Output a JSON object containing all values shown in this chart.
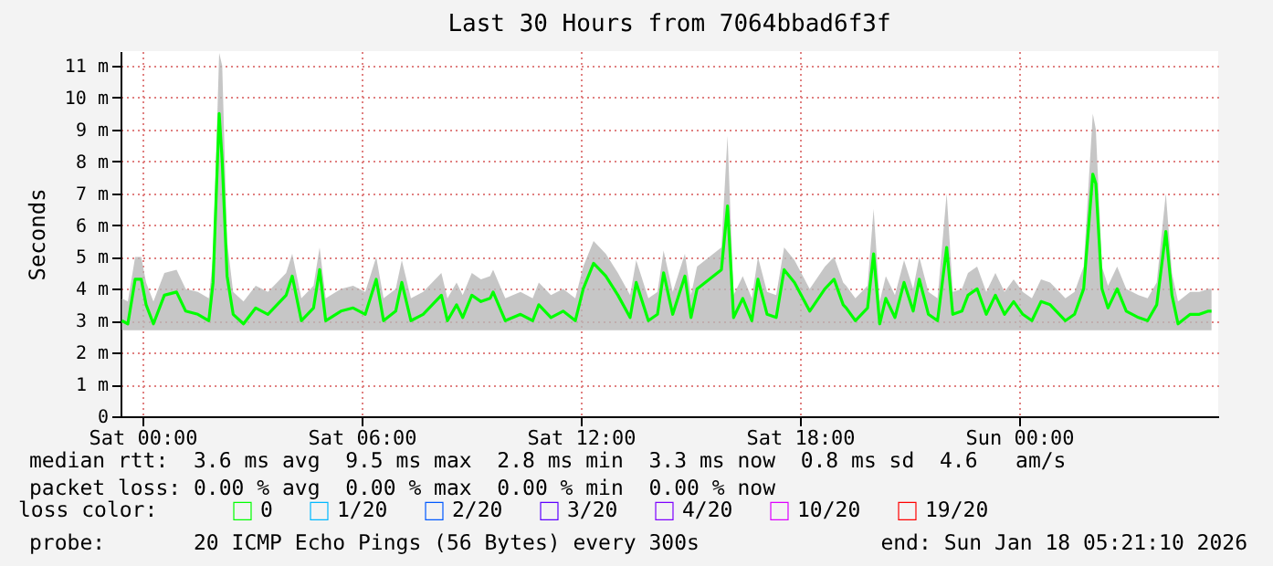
{
  "chart_data": {
    "type": "line",
    "title": "Last 30 Hours from 7064bbad6f3f",
    "ylabel": "Seconds",
    "legend_title": "loss color:",
    "legend": "bottom left",
    "grid": true,
    "xlim": [
      "2026-01-16T23:24",
      "2026-01-18T05:27"
    ],
    "xticks": [
      {
        "value": "2026-01-17T00:00",
        "label": "Sat 00:00"
      },
      {
        "value": "2026-01-17T06:00",
        "label": "Sat 06:00"
      },
      {
        "value": "2026-01-17T12:00",
        "label": "Sat 12:00"
      },
      {
        "value": "2026-01-17T18:00",
        "label": "Sat 18:00"
      },
      {
        "value": "2026-01-18T00:00",
        "label": "Sun 00:00"
      }
    ],
    "ylim": [
      0,
      11.46
    ],
    "yticks": [
      {
        "value": 0,
        "label": "0"
      },
      {
        "value": 1,
        "label": "1 m"
      },
      {
        "value": 2,
        "label": "2 m"
      },
      {
        "value": 3,
        "label": "3 m"
      },
      {
        "value": 4,
        "label": "4 m"
      },
      {
        "value": 5,
        "label": "5 m"
      },
      {
        "value": 6,
        "label": "6 m"
      },
      {
        "value": 7,
        "label": "7 m"
      },
      {
        "value": 8,
        "label": "8 m"
      },
      {
        "value": 9,
        "label": "9 m"
      },
      {
        "value": 10,
        "label": "10 m"
      },
      {
        "value": 11,
        "label": "11 m"
      }
    ],
    "x": [
      "2026-01-16T23:26",
      "2026-01-16T23:36",
      "2026-01-16T23:48",
      "2026-01-16T23:58",
      "2026-01-17T00:06",
      "2026-01-17T00:18",
      "2026-01-17T00:36",
      "2026-01-17T00:56",
      "2026-01-17T01:11",
      "2026-01-17T01:31",
      "2026-01-17T01:49",
      "2026-01-17T01:56",
      "2026-01-17T02:06",
      "2026-01-17T02:11",
      "2026-01-17T02:19",
      "2026-01-17T02:29",
      "2026-01-17T02:46",
      "2026-01-17T03:06",
      "2026-01-17T03:26",
      "2026-01-17T03:41",
      "2026-01-17T03:56",
      "2026-01-17T04:06",
      "2026-01-17T04:21",
      "2026-01-17T04:41",
      "2026-01-17T04:51",
      "2026-01-17T05:01",
      "2026-01-17T05:26",
      "2026-01-17T05:46",
      "2026-01-17T06:06",
      "2026-01-17T06:24",
      "2026-01-17T06:36",
      "2026-01-17T06:56",
      "2026-01-17T07:06",
      "2026-01-17T07:21",
      "2026-01-17T07:41",
      "2026-01-17T08:11",
      "2026-01-17T08:21",
      "2026-01-17T08:36",
      "2026-01-17T08:46",
      "2026-01-17T09:01",
      "2026-01-17T09:16",
      "2026-01-17T09:31",
      "2026-01-17T09:36",
      "2026-01-17T09:56",
      "2026-01-17T10:21",
      "2026-01-17T10:41",
      "2026-01-17T10:51",
      "2026-01-17T11:11",
      "2026-01-17T11:31",
      "2026-01-17T11:51",
      "2026-01-17T12:04",
      "2026-01-17T12:21",
      "2026-01-17T12:41",
      "2026-01-17T13:01",
      "2026-01-17T13:21",
      "2026-01-17T13:31",
      "2026-01-17T13:51",
      "2026-01-17T14:06",
      "2026-01-17T14:16",
      "2026-01-17T14:31",
      "2026-01-17T14:51",
      "2026-01-17T15:01",
      "2026-01-17T15:11",
      "2026-01-17T15:31",
      "2026-01-17T15:51",
      "2026-01-17T16:01",
      "2026-01-17T16:11",
      "2026-01-17T16:26",
      "2026-01-17T16:41",
      "2026-01-17T16:51",
      "2026-01-17T17:06",
      "2026-01-17T17:21",
      "2026-01-17T17:34",
      "2026-01-17T17:51",
      "2026-01-17T18:16",
      "2026-01-17T18:41",
      "2026-01-17T18:56",
      "2026-01-17T19:11",
      "2026-01-17T19:16",
      "2026-01-17T19:31",
      "2026-01-17T19:51",
      "2026-01-17T20:01",
      "2026-01-17T20:11",
      "2026-01-17T20:21",
      "2026-01-17T20:36",
      "2026-01-17T20:51",
      "2026-01-17T21:06",
      "2026-01-17T21:16",
      "2026-01-17T21:31",
      "2026-01-17T21:46",
      "2026-01-17T22:01",
      "2026-01-17T22:11",
      "2026-01-17T22:26",
      "2026-01-17T22:36",
      "2026-01-17T22:51",
      "2026-01-17T23:06",
      "2026-01-17T23:21",
      "2026-01-17T23:36",
      "2026-01-17T23:51",
      "2026-01-18T00:06",
      "2026-01-18T00:21",
      "2026-01-18T00:36",
      "2026-01-18T00:51",
      "2026-01-18T01:06",
      "2026-01-18T01:16",
      "2026-01-18T01:31",
      "2026-01-18T01:46",
      "2026-01-18T02:01",
      "2026-01-18T02:06",
      "2026-01-18T02:16",
      "2026-01-18T02:26",
      "2026-01-18T02:41",
      "2026-01-18T02:56",
      "2026-01-18T03:16",
      "2026-01-18T03:31",
      "2026-01-18T03:46",
      "2026-01-18T04:01",
      "2026-01-18T04:11",
      "2026-01-18T04:21",
      "2026-01-18T04:41",
      "2026-01-18T04:56",
      "2026-01-18T05:11",
      "2026-01-18T05:16"
    ],
    "series": [
      {
        "name": "0",
        "color": "#00ff00",
        "values": [
          3.0,
          2.9,
          4.3,
          4.3,
          3.5,
          2.9,
          3.8,
          3.9,
          3.3,
          3.2,
          3.0,
          4.2,
          9.5,
          8.0,
          4.4,
          3.2,
          2.9,
          3.4,
          3.2,
          3.5,
          3.8,
          4.4,
          3.0,
          3.4,
          4.6,
          3.0,
          3.3,
          3.4,
          3.2,
          4.3,
          3.0,
          3.3,
          4.2,
          3.0,
          3.2,
          3.8,
          3.0,
          3.5,
          3.1,
          3.8,
          3.6,
          3.7,
          3.9,
          3.0,
          3.2,
          3.0,
          3.5,
          3.1,
          3.3,
          3.0,
          4.0,
          4.8,
          4.4,
          3.8,
          3.1,
          4.2,
          3.0,
          3.2,
          4.5,
          3.2,
          4.4,
          3.1,
          4.0,
          4.3,
          4.6,
          6.6,
          3.1,
          3.7,
          3.0,
          4.3,
          3.2,
          3.1,
          4.6,
          4.2,
          3.3,
          4.0,
          4.3,
          3.5,
          3.4,
          3.0,
          3.4,
          5.1,
          2.9,
          3.7,
          3.1,
          4.2,
          3.3,
          4.3,
          3.2,
          3.0,
          5.3,
          3.2,
          3.3,
          3.8,
          4.0,
          3.2,
          3.8,
          3.2,
          3.6,
          3.2,
          3.0,
          3.6,
          3.5,
          3.2,
          3.0,
          3.2,
          4.0,
          7.6,
          7.3,
          4.0,
          3.4,
          4.0,
          3.3,
          3.1,
          3.0,
          3.5,
          5.8,
          3.8,
          2.9,
          3.2,
          3.2,
          3.3,
          3.3
        ],
        "lower": [
          2.7,
          2.7,
          2.7,
          2.7,
          2.7,
          2.7,
          2.7,
          2.7,
          2.7,
          2.7,
          2.7,
          2.7,
          2.7,
          2.7,
          2.7,
          2.7,
          2.7,
          2.7,
          2.7,
          2.7,
          2.7,
          2.7,
          2.7,
          2.7,
          2.7,
          2.7,
          2.7,
          2.7,
          2.7,
          2.7,
          2.7,
          2.7,
          2.7,
          2.7,
          2.7,
          2.7,
          2.7,
          2.7,
          2.7,
          2.7,
          2.7,
          2.7,
          2.7,
          2.7,
          2.7,
          2.7,
          2.7,
          2.7,
          2.7,
          2.7,
          2.7,
          2.7,
          2.7,
          2.7,
          2.7,
          2.7,
          2.7,
          2.7,
          2.7,
          2.7,
          2.7,
          2.7,
          2.7,
          2.7,
          2.7,
          2.7,
          2.7,
          2.7,
          2.7,
          2.7,
          2.7,
          2.7,
          2.7,
          2.7,
          2.7,
          2.7,
          2.7,
          2.7,
          2.7,
          2.7,
          2.7,
          2.7,
          2.7,
          2.7,
          2.7,
          2.7,
          2.7,
          2.7,
          2.7,
          2.7,
          2.7,
          2.7,
          2.7,
          2.7,
          2.7,
          2.7,
          2.7,
          2.7,
          2.7,
          2.7,
          2.7,
          2.7,
          2.7,
          2.7,
          2.7,
          2.7,
          2.7,
          2.7,
          2.7,
          2.7,
          2.7,
          2.7,
          2.7,
          2.7,
          2.7,
          2.7,
          2.7,
          2.7,
          2.7,
          2.7,
          2.7,
          2.7,
          2.7
        ],
        "upper": [
          3.7,
          3.6,
          5.0,
          5.0,
          4.2,
          3.6,
          4.5,
          4.6,
          4.0,
          3.9,
          3.7,
          5.0,
          11.4,
          11.0,
          5.5,
          3.9,
          3.6,
          4.1,
          3.9,
          4.2,
          4.5,
          5.1,
          3.7,
          4.1,
          5.3,
          3.7,
          4.0,
          4.1,
          3.9,
          5.0,
          3.7,
          4.0,
          4.9,
          3.7,
          3.9,
          4.5,
          3.7,
          4.2,
          3.8,
          4.5,
          4.3,
          4.4,
          4.6,
          3.7,
          3.9,
          3.7,
          4.2,
          3.8,
          4.0,
          3.7,
          4.7,
          5.5,
          5.1,
          4.5,
          3.8,
          4.9,
          3.7,
          3.9,
          5.2,
          3.9,
          5.1,
          3.8,
          4.7,
          5.0,
          5.3,
          8.8,
          3.8,
          4.4,
          3.7,
          5.0,
          3.9,
          3.8,
          5.3,
          4.9,
          4.0,
          4.7,
          5.0,
          4.2,
          4.1,
          3.7,
          4.1,
          6.5,
          3.6,
          4.4,
          3.8,
          4.9,
          4.0,
          5.0,
          3.9,
          3.7,
          7.0,
          3.9,
          4.0,
          4.5,
          4.7,
          3.9,
          4.5,
          3.9,
          4.3,
          3.9,
          3.7,
          4.3,
          4.2,
          3.9,
          3.7,
          3.9,
          4.7,
          9.5,
          9.0,
          4.7,
          4.1,
          4.7,
          4.0,
          3.8,
          3.7,
          4.2,
          7.0,
          4.5,
          3.6,
          3.9,
          3.9,
          4.0,
          4.0
        ]
      },
      {
        "name": "1/20",
        "color": "#00b8ff",
        "values": [
          null,
          null,
          null,
          null,
          null,
          null,
          null,
          null,
          null,
          null,
          null,
          null,
          null,
          null,
          null,
          null,
          null,
          null,
          null,
          null,
          null,
          null,
          null,
          null,
          null,
          null,
          null,
          null,
          null,
          null,
          null,
          null,
          null,
          null,
          null,
          null,
          null,
          null,
          null,
          null,
          null,
          null,
          null,
          null,
          null,
          null,
          null,
          null,
          null,
          null,
          null,
          null,
          null,
          null,
          null,
          null,
          null,
          null,
          null,
          null,
          null,
          null,
          null,
          null,
          null,
          null,
          null,
          null,
          null,
          null,
          null,
          null,
          null,
          null,
          null,
          null,
          null,
          null,
          null,
          null,
          null,
          null,
          null,
          null,
          null,
          null,
          null,
          null,
          null,
          null,
          null,
          null,
          null,
          null,
          null,
          null,
          null,
          null,
          null,
          null,
          null,
          null,
          null,
          null,
          null,
          null,
          null,
          null,
          null,
          null,
          null,
          null,
          null,
          null,
          null,
          null,
          null,
          null,
          null,
          null,
          null,
          null,
          null
        ]
      },
      {
        "name": "2/20",
        "color": "#0059ff",
        "values": [
          null,
          null,
          null,
          null,
          null,
          null,
          null,
          null,
          null,
          null,
          null,
          null,
          null,
          null,
          null,
          null,
          null,
          null,
          null,
          null,
          null,
          null,
          null,
          null,
          null,
          null,
          null,
          null,
          null,
          null,
          null,
          null,
          null,
          null,
          null,
          null,
          null,
          null,
          null,
          null,
          null,
          null,
          null,
          null,
          null,
          null,
          null,
          null,
          null,
          null,
          null,
          null,
          null,
          null,
          null,
          null,
          null,
          null,
          null,
          null,
          null,
          null,
          null,
          null,
          null,
          null,
          null,
          null,
          null,
          null,
          null,
          null,
          null,
          null,
          null,
          null,
          null,
          null,
          null,
          null,
          null,
          null,
          null,
          null,
          null,
          null,
          null,
          null,
          null,
          null,
          null,
          null,
          null,
          null,
          null,
          null,
          null,
          null,
          null,
          null,
          null,
          null,
          null,
          null,
          null,
          null,
          null,
          null,
          null,
          null,
          null,
          null,
          null,
          null,
          null,
          null,
          null,
          null,
          null,
          null,
          null,
          null,
          null
        ]
      },
      {
        "name": "3/20",
        "color": "#5e00ff",
        "values": [
          null,
          null,
          null,
          null,
          null,
          null,
          null,
          null,
          null,
          null,
          null,
          null,
          null,
          null,
          null,
          null,
          null,
          null,
          null,
          null,
          null,
          null,
          null,
          null,
          null,
          null,
          null,
          null,
          null,
          null,
          null,
          null,
          null,
          null,
          null,
          null,
          null,
          null,
          null,
          null,
          null,
          null,
          null,
          null,
          null,
          null,
          null,
          null,
          null,
          null,
          null,
          null,
          null,
          null,
          null,
          null,
          null,
          null,
          null,
          null,
          null,
          null,
          null,
          null,
          null,
          null,
          null,
          null,
          null,
          null,
          null,
          null,
          null,
          null,
          null,
          null,
          null,
          null,
          null,
          null,
          null,
          null,
          null,
          null,
          null,
          null,
          null,
          null,
          null,
          null,
          null,
          null,
          null,
          null,
          null,
          null,
          null,
          null,
          null,
          null,
          null,
          null,
          null,
          null,
          null,
          null,
          null,
          null,
          null,
          null,
          null,
          null,
          null,
          null,
          null,
          null,
          null,
          null,
          null,
          null,
          null,
          null,
          null
        ]
      },
      {
        "name": "4/20",
        "color": "#7e00ff",
        "values": [
          null,
          null,
          null,
          null,
          null,
          null,
          null,
          null,
          null,
          null,
          null,
          null,
          null,
          null,
          null,
          null,
          null,
          null,
          null,
          null,
          null,
          null,
          null,
          null,
          null,
          null,
          null,
          null,
          null,
          null,
          null,
          null,
          null,
          null,
          null,
          null,
          null,
          null,
          null,
          null,
          null,
          null,
          null,
          null,
          null,
          null,
          null,
          null,
          null,
          null,
          null,
          null,
          null,
          null,
          null,
          null,
          null,
          null,
          null,
          null,
          null,
          null,
          null,
          null,
          null,
          null,
          null,
          null,
          null,
          null,
          null,
          null,
          null,
          null,
          null,
          null,
          null,
          null,
          null,
          null,
          null,
          null,
          null,
          null,
          null,
          null,
          null,
          null,
          null,
          null,
          null,
          null,
          null,
          null,
          null,
          null,
          null,
          null,
          null,
          null,
          null,
          null,
          null,
          null,
          null,
          null,
          null,
          null,
          null,
          null,
          null,
          null,
          null,
          null,
          null,
          null,
          null,
          null,
          null,
          null,
          null,
          null,
          null
        ]
      },
      {
        "name": "10/20",
        "color": "#dd00ff",
        "values": [
          null,
          null,
          null,
          null,
          null,
          null,
          null,
          null,
          null,
          null,
          null,
          null,
          null,
          null,
          null,
          null,
          null,
          null,
          null,
          null,
          null,
          null,
          null,
          null,
          null,
          null,
          null,
          null,
          null,
          null,
          null,
          null,
          null,
          null,
          null,
          null,
          null,
          null,
          null,
          null,
          null,
          null,
          null,
          null,
          null,
          null,
          null,
          null,
          null,
          null,
          null,
          null,
          null,
          null,
          null,
          null,
          null,
          null,
          null,
          null,
          null,
          null,
          null,
          null,
          null,
          null,
          null,
          null,
          null,
          null,
          null,
          null,
          null,
          null,
          null,
          null,
          null,
          null,
          null,
          null,
          null,
          null,
          null,
          null,
          null,
          null,
          null,
          null,
          null,
          null,
          null,
          null,
          null,
          null,
          null,
          null,
          null,
          null,
          null,
          null,
          null,
          null,
          null,
          null,
          null,
          null,
          null,
          null,
          null,
          null,
          null,
          null,
          null,
          null,
          null,
          null,
          null,
          null,
          null,
          null,
          null,
          null,
          null
        ]
      },
      {
        "name": "19/20",
        "color": "#ff0000",
        "values": [
          null,
          null,
          null,
          null,
          null,
          null,
          null,
          null,
          null,
          null,
          null,
          null,
          null,
          null,
          null,
          null,
          null,
          null,
          null,
          null,
          null,
          null,
          null,
          null,
          null,
          null,
          null,
          null,
          null,
          null,
          null,
          null,
          null,
          null,
          null,
          null,
          null,
          null,
          null,
          null,
          null,
          null,
          null,
          null,
          null,
          null,
          null,
          null,
          null,
          null,
          null,
          null,
          null,
          null,
          null,
          null,
          null,
          null,
          null,
          null,
          null,
          null,
          null,
          null,
          null,
          null,
          null,
          null,
          null,
          null,
          null,
          null,
          null,
          null,
          null,
          null,
          null,
          null,
          null,
          null,
          null,
          null,
          null,
          null,
          null,
          null,
          null,
          null,
          null,
          null,
          null,
          null,
          null,
          null,
          null,
          null,
          null,
          null,
          null,
          null,
          null,
          null,
          null,
          null,
          null,
          null,
          null,
          null,
          null,
          null,
          null,
          null,
          null,
          null,
          null,
          null,
          null,
          null,
          null,
          null,
          null,
          null,
          null
        ]
      }
    ],
    "annotations": [
      "median rtt:  3.6 ms avg  9.5 ms max  2.8 ms min  3.3 ms now  0.8 ms sd  4.6   am/s",
      "packet loss: 0.00 % avg  0.00 % max  0.00 % min  0.00 % now",
      "probe:       20 ICMP Echo Pings (56 Bytes) every 300s",
      "end: Sun Jan 18 05:21:10 2026"
    ]
  }
}
